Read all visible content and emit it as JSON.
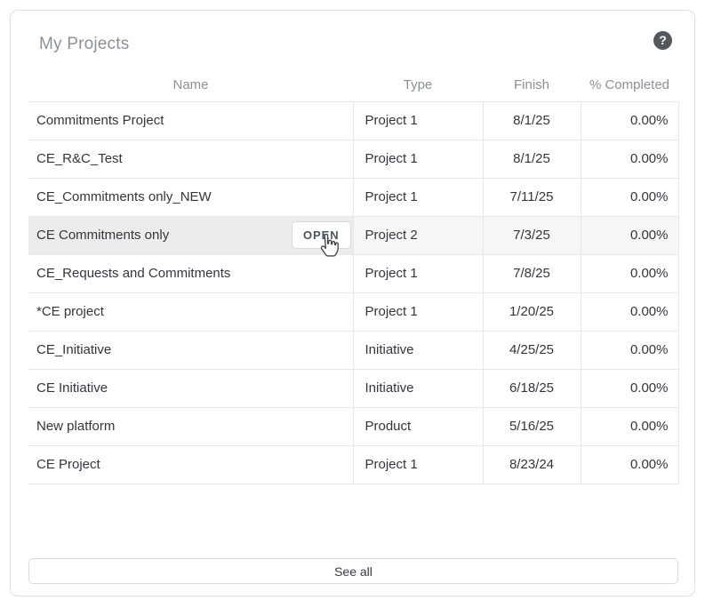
{
  "panel": {
    "title": "My Projects",
    "help_icon_glyph": "?",
    "see_all_label": "See all"
  },
  "table": {
    "columns": [
      "Name",
      "Type",
      "Finish",
      "% Completed"
    ],
    "open_button_label": "OPEN",
    "rows": [
      {
        "name": "Commitments Project",
        "type": "Project 1",
        "finish": "8/1/25",
        "completed": "0.00%",
        "highlighted": false,
        "show_open": false
      },
      {
        "name": "CE_R&C_Test",
        "type": "Project 1",
        "finish": "8/1/25",
        "completed": "0.00%",
        "highlighted": false,
        "show_open": false
      },
      {
        "name": "CE_Commitments only_NEW",
        "type": "Project 1",
        "finish": "7/11/25",
        "completed": "0.00%",
        "highlighted": false,
        "show_open": false
      },
      {
        "name": "CE Commitments only",
        "type": "Project 2",
        "finish": "7/3/25",
        "completed": "0.00%",
        "highlighted": true,
        "show_open": true
      },
      {
        "name": "CE_Requests and Commitments",
        "type": "Project 1",
        "finish": "7/8/25",
        "completed": "0.00%",
        "highlighted": false,
        "show_open": false
      },
      {
        "name": "*CE project",
        "type": "Project 1",
        "finish": "1/20/25",
        "completed": "0.00%",
        "highlighted": false,
        "show_open": false
      },
      {
        "name": "CE_Initiative",
        "type": "Initiative",
        "finish": "4/25/25",
        "completed": "0.00%",
        "highlighted": false,
        "show_open": false
      },
      {
        "name": "CE Initiative",
        "type": "Initiative",
        "finish": "6/18/25",
        "completed": "0.00%",
        "highlighted": false,
        "show_open": false
      },
      {
        "name": "New platform",
        "type": "Product",
        "finish": "5/16/25",
        "completed": "0.00%",
        "highlighted": false,
        "show_open": false
      },
      {
        "name": "CE Project",
        "type": "Project 1",
        "finish": "8/23/24",
        "completed": "0.00%",
        "highlighted": false,
        "show_open": false
      }
    ]
  },
  "colors": {
    "card_border": "#dde2e8",
    "title_text": "#8b9199",
    "header_text": "#8b9199",
    "cell_text": "#32363c",
    "row_border": "#e7e8ea",
    "highlight_row_bg": "#f6f6f7",
    "highlight_name_bg": "#ececed",
    "help_badge_bg": "#54575c",
    "button_border": "#d8dbde",
    "button_text": "#4d555e"
  },
  "icons": {
    "help": "help-circle-icon",
    "cursor": "hand-pointer-cursor-icon"
  }
}
